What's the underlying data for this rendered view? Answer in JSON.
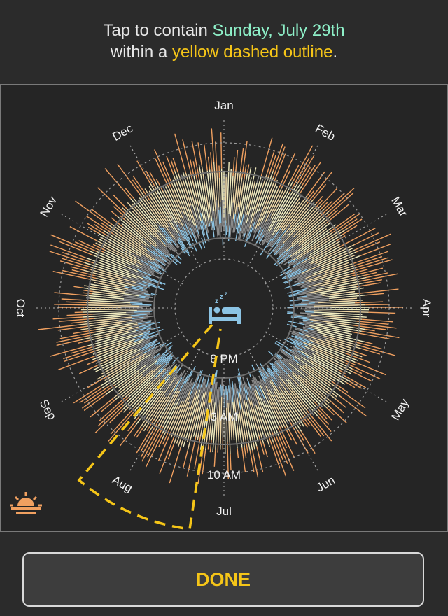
{
  "instruction": {
    "prefix": "Tap to contain ",
    "target_day": "Sunday, July 29th",
    "middle": "within a ",
    "outline_text": "yellow dashed outline",
    "suffix": "."
  },
  "chart": {
    "months": [
      {
        "label": "Jan",
        "angle": 0
      },
      {
        "label": "Feb",
        "angle": 30
      },
      {
        "label": "Mar",
        "angle": 60
      },
      {
        "label": "Apr",
        "angle": 90
      },
      {
        "label": "May",
        "angle": 120
      },
      {
        "label": "Jun",
        "angle": 150
      },
      {
        "label": "Jul",
        "angle": 180
      },
      {
        "label": "Aug",
        "angle": 210
      },
      {
        "label": "Sep",
        "angle": 240
      },
      {
        "label": "Oct",
        "angle": 270
      },
      {
        "label": "Nov",
        "angle": 300
      },
      {
        "label": "Dec",
        "angle": 330
      }
    ],
    "time_labels": [
      "8 PM",
      "3 AM",
      "10 AM"
    ],
    "colors": {
      "sleep_light": "#f3eec0",
      "sleep_pale": "#f1d9a6",
      "sleep_orange": "#f0a060",
      "evening_blue": "#8cc4e4",
      "grey": "#8a8a8a",
      "outline": "#f5c518"
    },
    "center_icon": "sleep-bed-icon",
    "corner_icon": "sunrise-icon"
  },
  "done": {
    "label": "DONE"
  }
}
